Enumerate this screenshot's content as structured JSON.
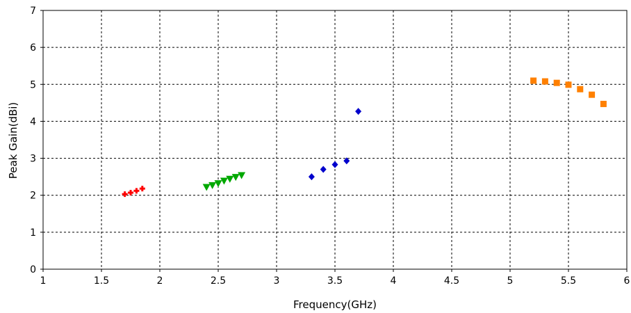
{
  "chart_data": {
    "type": "scatter",
    "title": "",
    "xlabel": "Frequency(GHz)",
    "ylabel": "Peak Gain(dBi)",
    "xlim": [
      1,
      6
    ],
    "ylim": [
      0,
      7
    ],
    "grid": true,
    "x_ticks": [
      "1",
      "1.5",
      "2",
      "2.5",
      "3",
      "3.5",
      "4",
      "4.5",
      "5",
      "5.5",
      "6"
    ],
    "y_ticks": [
      "0",
      "1",
      "2",
      "3",
      "4",
      "5",
      "6",
      "7"
    ],
    "series": [
      {
        "marker": "plus",
        "color": "#ff0000",
        "x": [
          1.7,
          1.75,
          1.8,
          1.85
        ],
        "y": [
          2.03,
          2.07,
          2.12,
          2.18
        ]
      },
      {
        "marker": "triangle-down",
        "color": "#00a800",
        "x": [
          2.4,
          2.45,
          2.5,
          2.55,
          2.6,
          2.65,
          2.7
        ],
        "y": [
          2.23,
          2.28,
          2.33,
          2.4,
          2.45,
          2.5,
          2.55
        ]
      },
      {
        "marker": "diamond",
        "color": "#0000cc",
        "x": [
          3.3,
          3.4,
          3.5,
          3.6,
          3.7
        ],
        "y": [
          2.5,
          2.7,
          2.83,
          2.93,
          4.27
        ]
      },
      {
        "marker": "square",
        "color": "#ff8000",
        "x": [
          5.2,
          5.3,
          5.4,
          5.5,
          5.6,
          5.7,
          5.8
        ],
        "y": [
          5.1,
          5.08,
          5.04,
          4.99,
          4.87,
          4.72,
          4.47
        ]
      }
    ]
  }
}
